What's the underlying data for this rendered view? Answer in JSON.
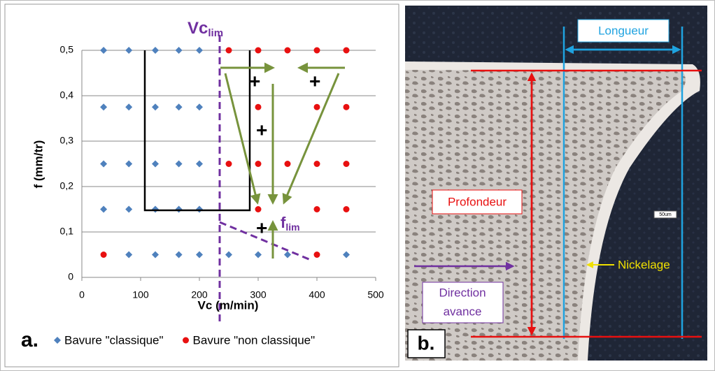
{
  "chart_data": {
    "type": "scatter",
    "x_label": "Vc (m/min)",
    "y_label": "f (mm/tr)",
    "xlim": [
      0,
      500
    ],
    "xticks": [
      0,
      100,
      200,
      300,
      400,
      500
    ],
    "ylim": [
      0,
      0.5
    ],
    "yticks": [
      {
        "value": 0,
        "label": "0"
      },
      {
        "value": 0.1,
        "label": "0,1"
      },
      {
        "value": 0.2,
        "label": "0,2"
      },
      {
        "value": 0.3,
        "label": "0,3"
      },
      {
        "value": 0.4,
        "label": "0,4"
      },
      {
        "value": 0.5,
        "label": "0,5"
      }
    ],
    "grid": true,
    "annotations": [
      {
        "text": "Vc",
        "subscript": "lim"
      },
      {
        "text": "f",
        "subscript": "lim"
      }
    ],
    "series": [
      {
        "name": "Bavure \"classique\"",
        "color": "#4f81bd",
        "marker": "diamond",
        "x": [
          37,
          80,
          125,
          165,
          200,
          37,
          80,
          125,
          165,
          200,
          37,
          80,
          125,
          165,
          200,
          37,
          80,
          125,
          165,
          200,
          80,
          125,
          165,
          200,
          250,
          300,
          350,
          450
        ],
        "y": [
          0.5,
          0.5,
          0.5,
          0.5,
          0.5,
          0.375,
          0.375,
          0.375,
          0.375,
          0.375,
          0.25,
          0.25,
          0.25,
          0.25,
          0.25,
          0.15,
          0.15,
          0.15,
          0.15,
          0.15,
          0.05,
          0.05,
          0.05,
          0.05,
          0.05,
          0.05,
          0.05,
          0.05
        ]
      },
      {
        "name": "Bavure \"non classique\"",
        "color": "#e81010",
        "marker": "circle",
        "x": [
          250,
          300,
          350,
          400,
          450,
          300,
          400,
          450,
          250,
          300,
          350,
          400,
          450,
          300,
          400,
          450,
          37,
          400
        ],
        "y": [
          0.5,
          0.5,
          0.5,
          0.5,
          0.5,
          0.375,
          0.375,
          0.375,
          0.25,
          0.25,
          0.25,
          0.25,
          0.25,
          0.15,
          0.15,
          0.15,
          0.05,
          0.05
        ]
      }
    ]
  },
  "figure": {
    "panel_a_label": "a.",
    "panel_b_label": "b.",
    "labels": {
      "length": "Longueur",
      "depth": "Profondeur",
      "plating": "Nickelage",
      "direction": [
        "Direction",
        "avance"
      ],
      "scale_bar": "50um"
    }
  }
}
